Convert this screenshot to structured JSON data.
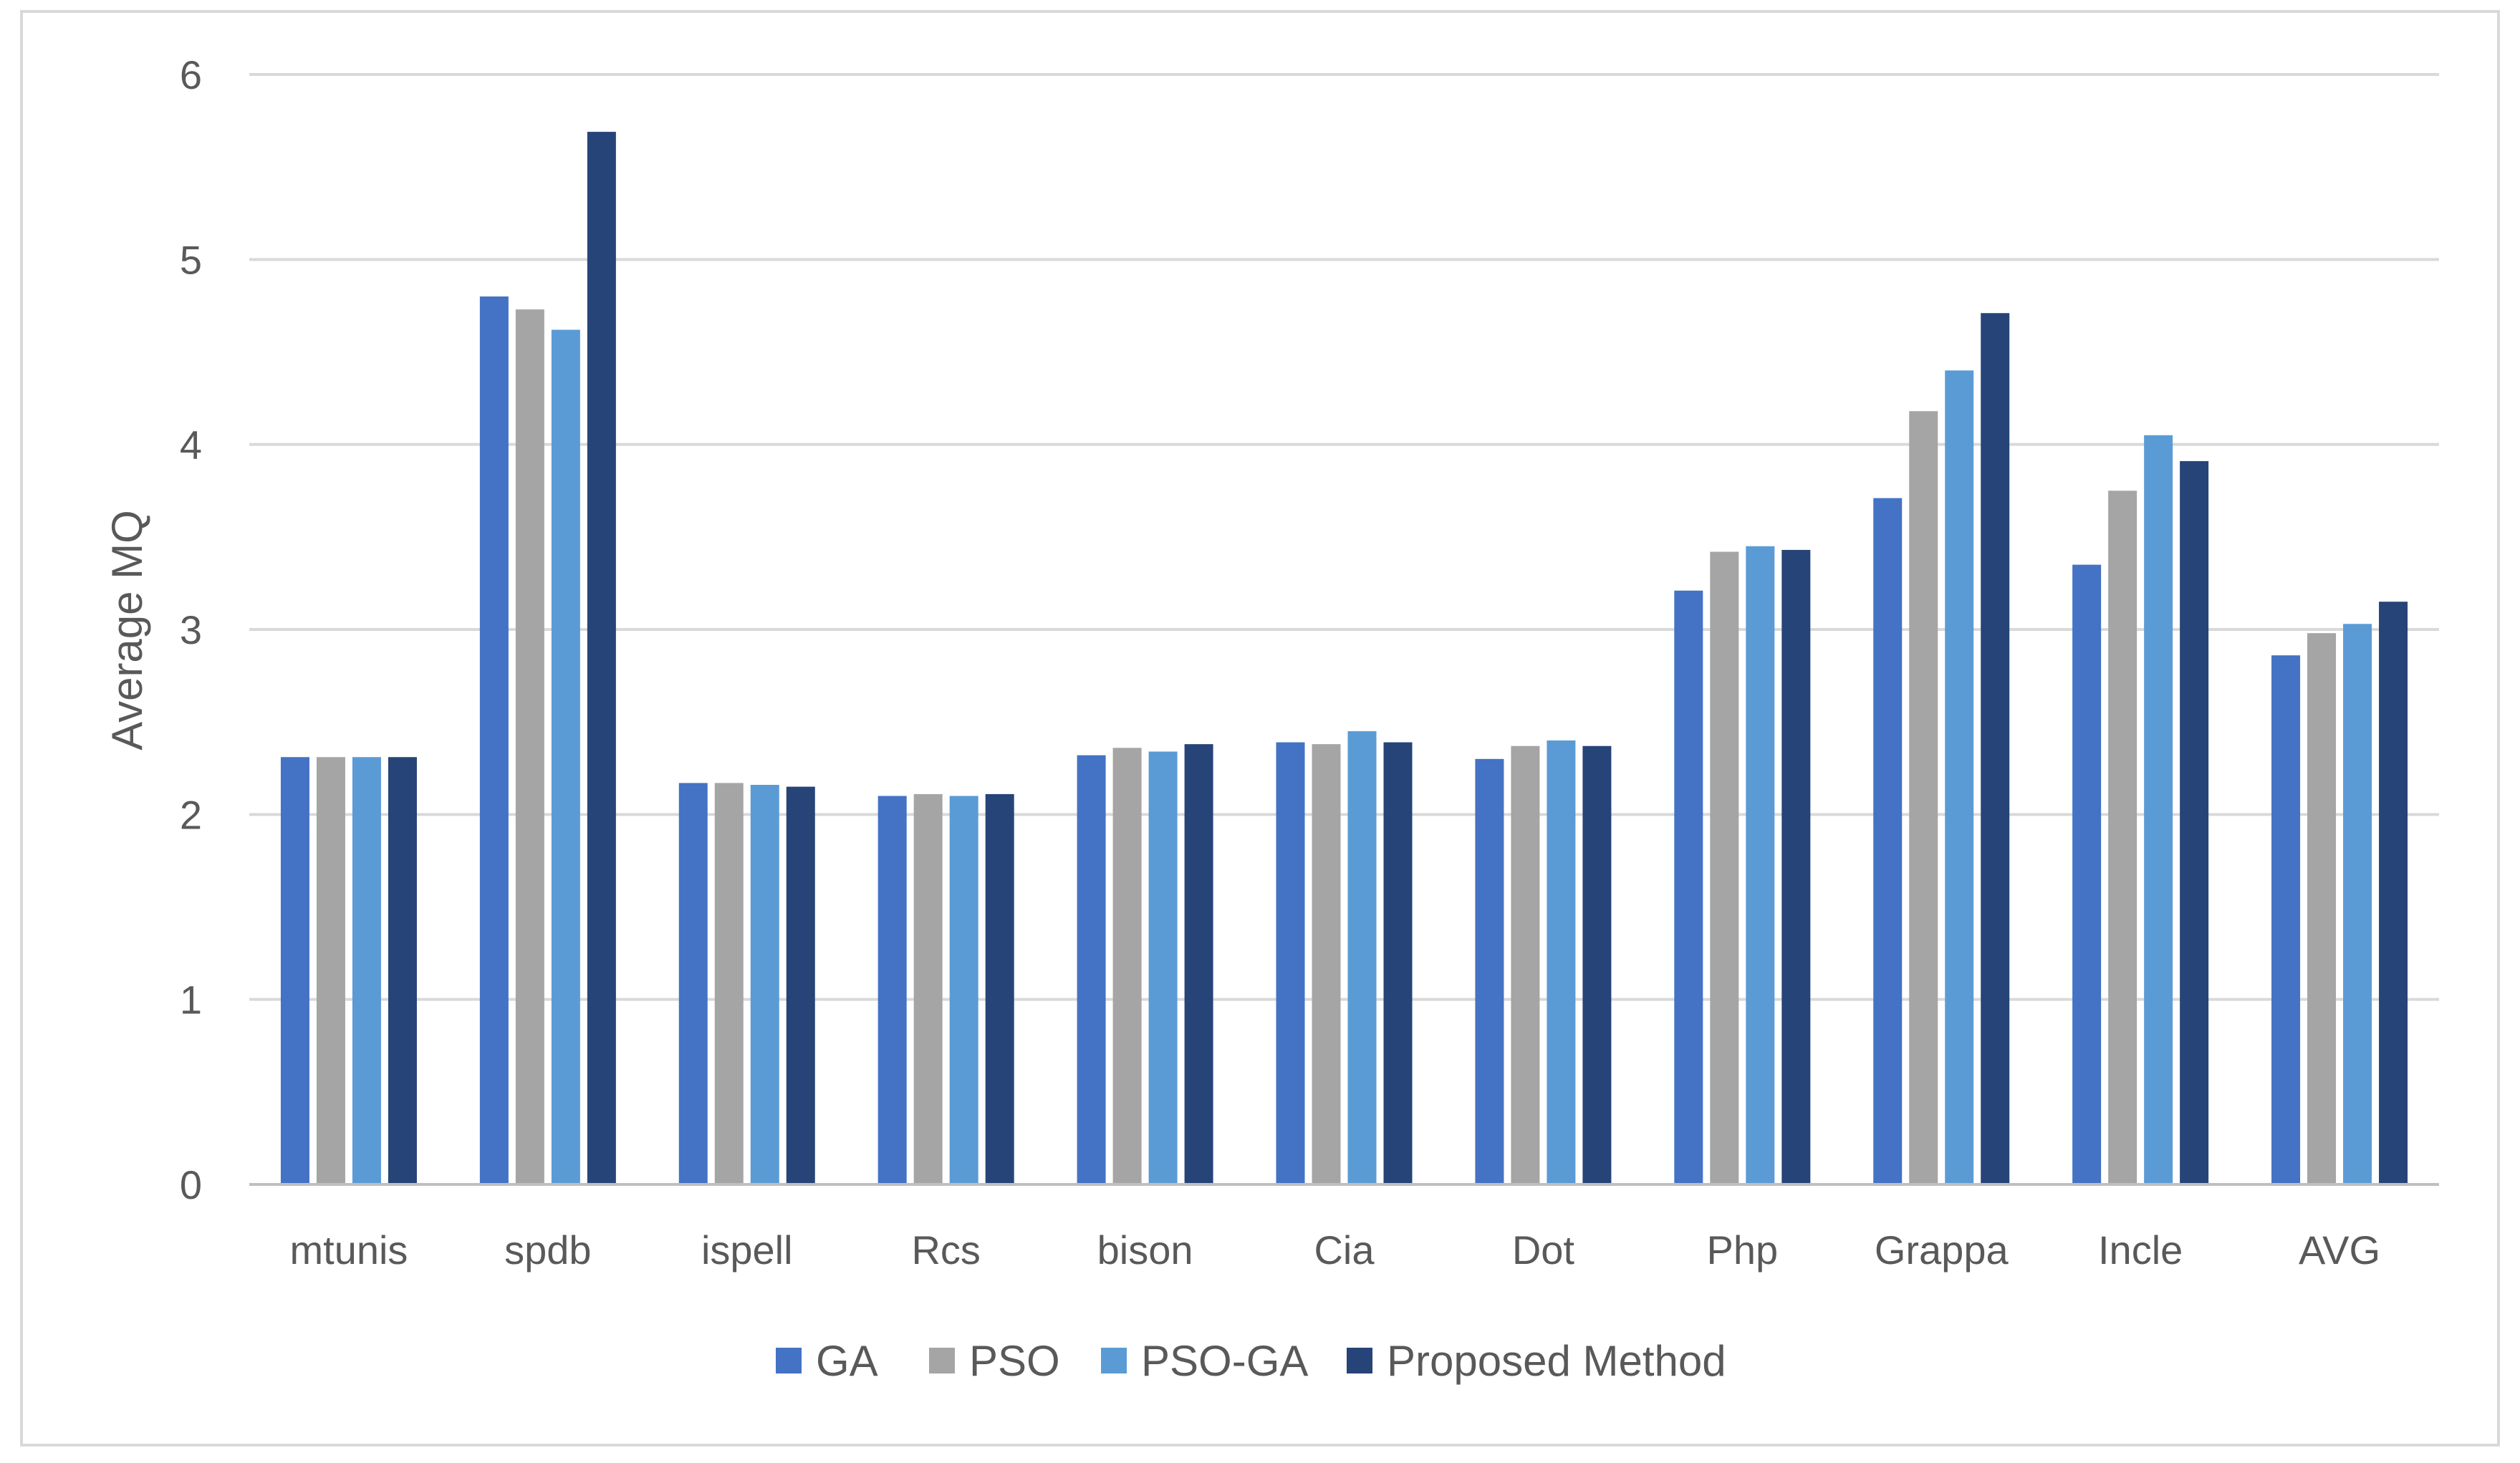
{
  "chart_data": {
    "type": "bar",
    "title": "",
    "xlabel": "",
    "ylabel": "Average MQ",
    "ylim": [
      0,
      6
    ],
    "yticks": [
      "0",
      "1",
      "2",
      "3",
      "4",
      "5",
      "6"
    ],
    "grid": true,
    "legend_position": "bottom",
    "categories": [
      "mtunis",
      "spdb",
      "ispell",
      "Rcs",
      "bison",
      "Cia",
      "Dot",
      "Php",
      "Grappa",
      "Incle",
      "AVG"
    ],
    "series": [
      {
        "name": "GA",
        "color": "#4472c4",
        "values": [
          2.31,
          4.8,
          2.17,
          2.1,
          2.32,
          2.39,
          2.3,
          3.21,
          3.71,
          3.35,
          2.86
        ]
      },
      {
        "name": "PSO",
        "color": "#a5a5a5",
        "values": [
          2.31,
          4.73,
          2.17,
          2.11,
          2.36,
          2.38,
          2.37,
          3.42,
          4.18,
          3.75,
          2.98
        ]
      },
      {
        "name": "PSO-GA",
        "color": "#5b9bd5",
        "values": [
          2.31,
          4.62,
          2.16,
          2.1,
          2.34,
          2.45,
          2.4,
          3.45,
          4.4,
          4.05,
          3.03
        ]
      },
      {
        "name": "Proposed Method",
        "color": "#264478",
        "values": [
          2.31,
          5.69,
          2.15,
          2.11,
          2.38,
          2.39,
          2.37,
          3.43,
          4.71,
          3.91,
          3.15
        ]
      }
    ]
  }
}
